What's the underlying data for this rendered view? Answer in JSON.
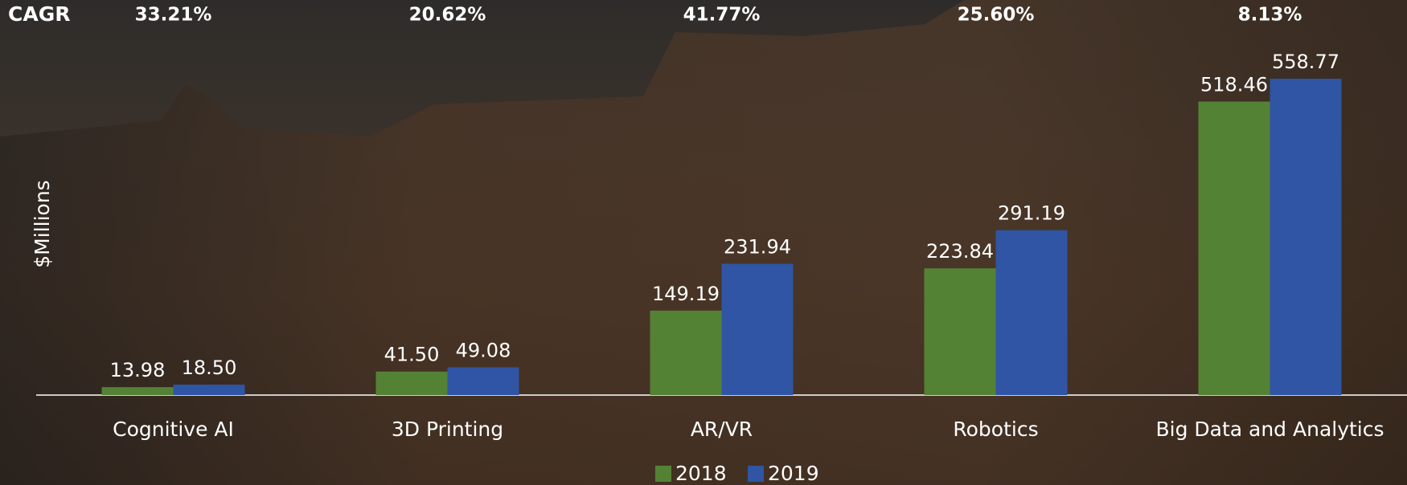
{
  "chart_data": {
    "type": "bar",
    "y_label": "$Millions",
    "categories": [
      "Cognitive AI",
      "3D Printing",
      "AR/VR",
      "Robotics",
      "Big Data and Analytics"
    ],
    "series": [
      {
        "name": "2018",
        "color": "#548235",
        "values": [
          13.98,
          41.5,
          149.19,
          223.84,
          518.46
        ],
        "value_labels": [
          "13.98",
          "41.50",
          "149.19",
          "223.84",
          "518.46"
        ]
      },
      {
        "name": "2019",
        "color": "#2f55a4",
        "values": [
          18.5,
          49.08,
          231.94,
          291.19,
          558.77
        ],
        "value_labels": [
          "18.50",
          "49.08",
          "231.94",
          "291.19",
          "558.77"
        ]
      }
    ],
    "ylim": [
      0,
      600
    ],
    "annotation_title": "CAGR",
    "annotations": [
      "33.21%",
      "20.62%",
      "41.77%",
      "25.60%",
      "8.13%"
    ]
  }
}
